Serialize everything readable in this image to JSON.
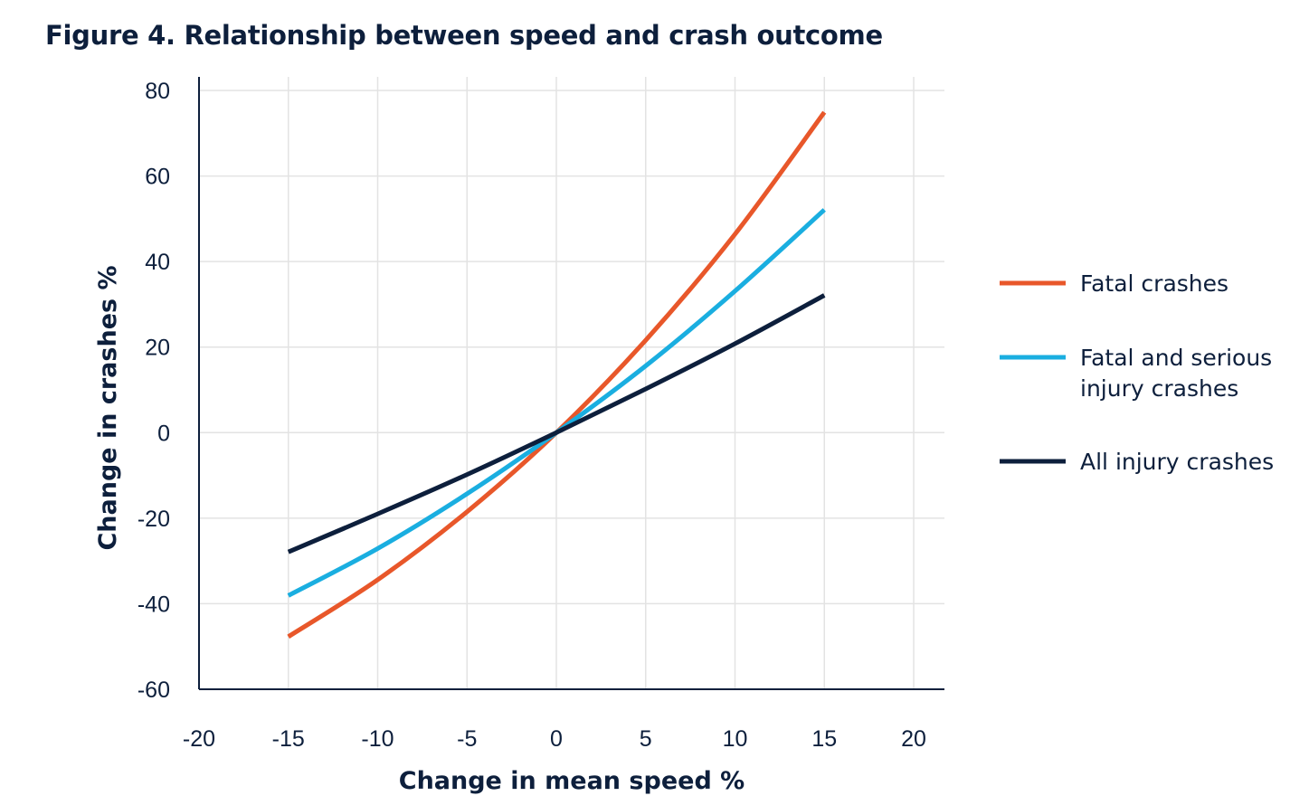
{
  "figure_title": "Figure 4. Relationship between speed and crash outcome",
  "chart_data": {
    "type": "line",
    "title": "Figure 4. Relationship between speed and crash outcome",
    "xlabel": "Change in mean speed %",
    "ylabel": "Change in crashes %",
    "xlim": [
      -20,
      20
    ],
    "ylim": [
      -60,
      80
    ],
    "xticks": [
      -20,
      -15,
      -10,
      -5,
      0,
      5,
      10,
      15,
      20
    ],
    "yticks": [
      80,
      60,
      40,
      20,
      0,
      -20,
      -40,
      -60
    ],
    "xtick_labels": [
      "-20",
      "-15",
      "-10",
      "-5",
      "0",
      "5",
      "10",
      "15",
      "20"
    ],
    "ytick_labels": [
      "80",
      "60",
      "40",
      "20",
      "0",
      "-20",
      "-40",
      "-60"
    ],
    "grid": true,
    "legend_position": "right",
    "x": [
      -15,
      -10,
      -5,
      0,
      5,
      10,
      15
    ],
    "series": [
      {
        "name": "Fatal crashes",
        "color": "#e8572a",
        "values": [
          -47.7,
          -34.4,
          -18.5,
          0,
          21.6,
          46.4,
          74.9
        ]
      },
      {
        "name": "Fatal and serious injury crashes",
        "color": "#1aaee0",
        "values": [
          -38.1,
          -27.1,
          -14.3,
          0,
          15.6,
          33.1,
          52.1
        ]
      },
      {
        "name": "All injury crashes",
        "color": "#0d1f3c",
        "values": [
          -27.9,
          -19.0,
          -9.8,
          0,
          10.2,
          20.8,
          32.1
        ]
      }
    ]
  },
  "legend": {
    "items": [
      {
        "lines": [
          "Fatal crashes"
        ],
        "color": "#e8572a"
      },
      {
        "lines": [
          "Fatal and serious",
          "injury crashes"
        ],
        "color": "#1aaee0"
      },
      {
        "lines": [
          "All injury crashes"
        ],
        "color": "#0d1f3c"
      }
    ]
  }
}
